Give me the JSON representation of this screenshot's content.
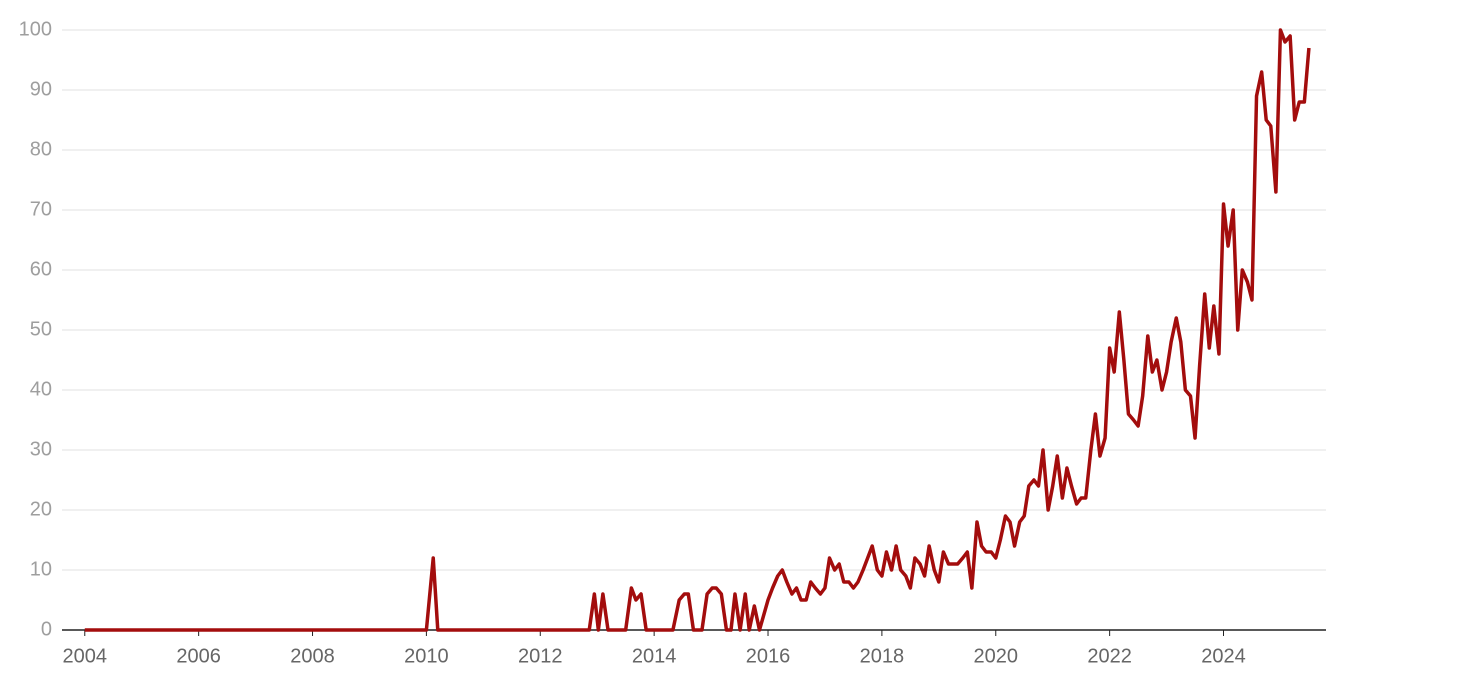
{
  "chart_data": {
    "type": "line",
    "xlim": [
      2003.6,
      2025.8
    ],
    "xticks": [
      2004,
      2006,
      2008,
      2010,
      2012,
      2014,
      2016,
      2018,
      2020,
      2022,
      2024
    ],
    "ylim": [
      0,
      100
    ],
    "yticks": [
      0,
      10,
      20,
      30,
      40,
      50,
      60,
      70,
      80,
      90,
      100
    ],
    "grid": true,
    "series": [
      {
        "color": "#a30d0d",
        "x": [
          2004,
          2010,
          2010.12,
          2010.2,
          2012.86,
          2012.95,
          2013.02,
          2013.1,
          2013.19,
          2013.5,
          2013.6,
          2013.68,
          2013.77,
          2013.86,
          2014.33,
          2014.44,
          2014.53,
          2014.6,
          2014.69,
          2014.84,
          2014.93,
          2015.02,
          2015.09,
          2015.18,
          2015.27,
          2015.35,
          2015.42,
          2015.51,
          2015.6,
          2015.67,
          2015.76,
          2015.85,
          2016.0,
          2016.08,
          2016.17,
          2016.25,
          2016.33,
          2016.42,
          2016.5,
          2016.58,
          2016.67,
          2016.75,
          2016.83,
          2016.92,
          2017.0,
          2017.08,
          2017.17,
          2017.25,
          2017.33,
          2017.42,
          2017.5,
          2017.58,
          2017.67,
          2017.75,
          2017.83,
          2017.92,
          2018.0,
          2018.08,
          2018.17,
          2018.25,
          2018.33,
          2018.42,
          2018.5,
          2018.58,
          2018.67,
          2018.75,
          2018.83,
          2018.92,
          2019.0,
          2019.08,
          2019.17,
          2019.25,
          2019.33,
          2019.42,
          2019.5,
          2019.58,
          2019.67,
          2019.75,
          2019.83,
          2019.92,
          2020.0,
          2020.08,
          2020.17,
          2020.25,
          2020.33,
          2020.42,
          2020.5,
          2020.58,
          2020.67,
          2020.75,
          2020.83,
          2020.92,
          2021.0,
          2021.08,
          2021.17,
          2021.25,
          2021.33,
          2021.42,
          2021.5,
          2021.58,
          2021.67,
          2021.75,
          2021.83,
          2021.92,
          2022.0,
          2022.08,
          2022.17,
          2022.25,
          2022.33,
          2022.42,
          2022.5,
          2022.58,
          2022.67,
          2022.75,
          2022.83,
          2022.92,
          2023.0,
          2023.08,
          2023.17,
          2023.25,
          2023.33,
          2023.42,
          2023.5,
          2023.58,
          2023.67,
          2023.75,
          2023.83,
          2023.92,
          2024.0,
          2024.08,
          2024.17,
          2024.25,
          2024.33,
          2024.42,
          2024.5,
          2024.58,
          2024.67,
          2024.75,
          2024.83,
          2024.92,
          2025.0,
          2025.08,
          2025.17,
          2025.25,
          2025.33,
          2025.42,
          2025.5
        ],
        "values": [
          0,
          0,
          12,
          0,
          0,
          6,
          0,
          6,
          0,
          0,
          7,
          5,
          6,
          0,
          0,
          5,
          6,
          6,
          0,
          0,
          6,
          7,
          7,
          6,
          0,
          0,
          6,
          0,
          6,
          0,
          4,
          0,
          5,
          7,
          9,
          10,
          8,
          6,
          7,
          5,
          5,
          8,
          7,
          6,
          7,
          12,
          10,
          11,
          8,
          8,
          7,
          8,
          10,
          12,
          14,
          10,
          9,
          13,
          10,
          14,
          10,
          9,
          7,
          12,
          11,
          9,
          14,
          10,
          8,
          13,
          11,
          11,
          11,
          12,
          13,
          7,
          18,
          14,
          13,
          13,
          12,
          15,
          19,
          18,
          14,
          18,
          19,
          24,
          25,
          24,
          30,
          20,
          24,
          29,
          22,
          27,
          24,
          21,
          22,
          22,
          30,
          36,
          29,
          32,
          47,
          43,
          53,
          45,
          36,
          35,
          34,
          39,
          49,
          43,
          45,
          40,
          43,
          48,
          52,
          48,
          40,
          39,
          32,
          44,
          56,
          47,
          54,
          46,
          71,
          64,
          70,
          50,
          60,
          58,
          55,
          89,
          93,
          85,
          84,
          73,
          100,
          98,
          99,
          85,
          88,
          88,
          97
        ]
      }
    ]
  }
}
